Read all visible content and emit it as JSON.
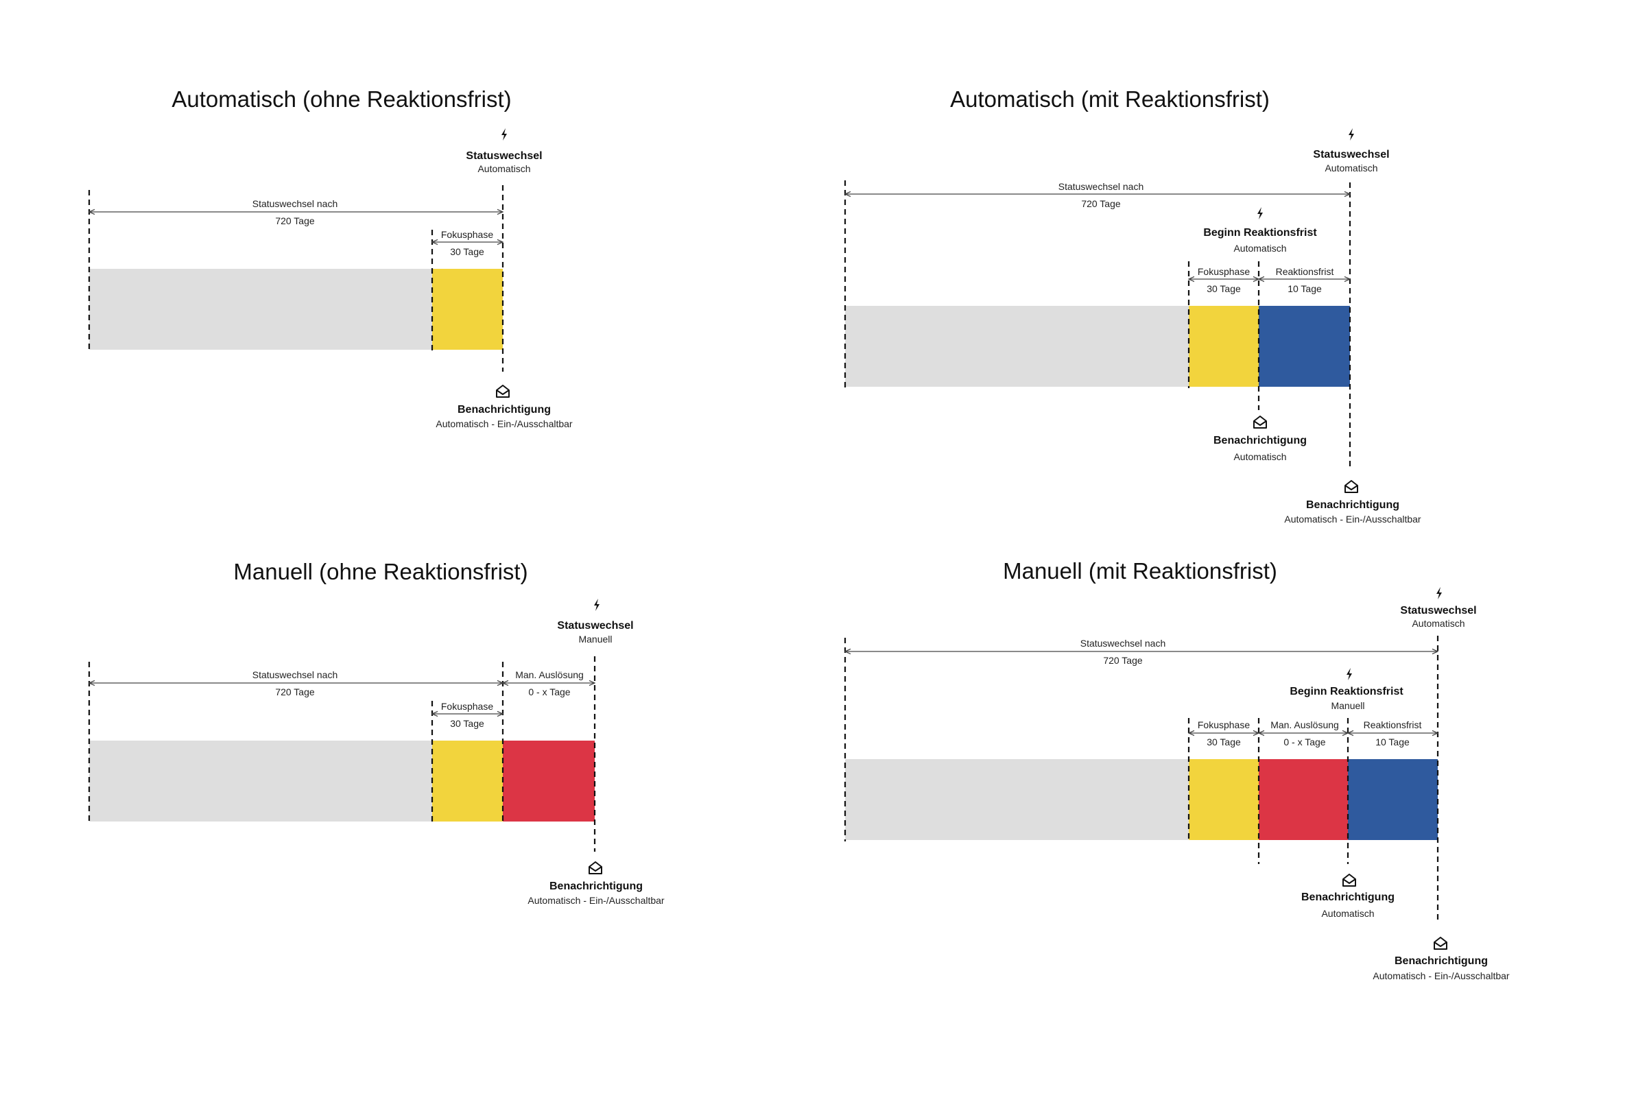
{
  "colors": {
    "base": "#dedede",
    "fokus": "#f2d43d",
    "manual": "#dc3545",
    "reaktion": "#2f5a9e",
    "line": "#111111"
  },
  "icons": {
    "event": "lightning-icon",
    "notification": "envelope-icon"
  },
  "panels": [
    {
      "title": "Automatisch (ohne Reaktionsfrist)",
      "segments": [
        {
          "id": "base",
          "color": "#dedede"
        },
        {
          "id": "fokus",
          "color": "#f2d43d"
        }
      ],
      "spans": [
        {
          "label": "Statuswechsel nach",
          "value": "720 Tage"
        },
        {
          "label": "Fokusphase",
          "value": "30 Tage"
        }
      ],
      "events": [
        {
          "title": "Statuswechsel",
          "sub": "Automatisch"
        }
      ],
      "notifications": [
        {
          "title": "Benachrichtigung",
          "sub": "Automatisch - Ein-/Ausschaltbar"
        }
      ]
    },
    {
      "title": "Automatisch (mit Reaktionsfrist)",
      "segments": [
        {
          "id": "base",
          "color": "#dedede"
        },
        {
          "id": "fokus",
          "color": "#f2d43d"
        },
        {
          "id": "reaktion",
          "color": "#2f5a9e"
        }
      ],
      "spans": [
        {
          "label": "Statuswechsel nach",
          "value": "720 Tage"
        },
        {
          "label": "Fokusphase",
          "value": "30 Tage"
        },
        {
          "label": "Reaktionsfrist",
          "value": "10 Tage"
        }
      ],
      "events": [
        {
          "title": "Statuswechsel",
          "sub": "Automatisch"
        },
        {
          "title": "Beginn Reaktionsfrist",
          "sub": "Automatisch"
        }
      ],
      "notifications": [
        {
          "title": "Benachrichtigung",
          "sub": "Automatisch"
        },
        {
          "title": "Benachrichtigung",
          "sub": "Automatisch - Ein-/Ausschaltbar"
        }
      ]
    },
    {
      "title": "Manuell  (ohne Reaktionsfrist)",
      "segments": [
        {
          "id": "base",
          "color": "#dedede"
        },
        {
          "id": "fokus",
          "color": "#f2d43d"
        },
        {
          "id": "manual",
          "color": "#dc3545"
        }
      ],
      "spans": [
        {
          "label": "Statuswechsel nach",
          "value": "720 Tage"
        },
        {
          "label": "Fokusphase",
          "value": "30 Tage"
        },
        {
          "label": "Man. Auslösung",
          "value": "0  - x Tage"
        }
      ],
      "events": [
        {
          "title": "Statuswechsel",
          "sub": "Manuell"
        }
      ],
      "notifications": [
        {
          "title": "Benachrichtigung",
          "sub": "Automatisch - Ein-/Ausschaltbar"
        }
      ]
    },
    {
      "title": "Manuell (mit Reaktionsfrist)",
      "segments": [
        {
          "id": "base",
          "color": "#dedede"
        },
        {
          "id": "fokus",
          "color": "#f2d43d"
        },
        {
          "id": "manual",
          "color": "#dc3545"
        },
        {
          "id": "reaktion",
          "color": "#2f5a9e"
        }
      ],
      "spans": [
        {
          "label": "Statuswechsel nach",
          "value": "720 Tage"
        },
        {
          "label": "Fokusphase",
          "value": "30 Tage"
        },
        {
          "label": "Man. Auslösung",
          "value": "0  - x Tage"
        },
        {
          "label": "Reaktionsfrist",
          "value": "10 Tage"
        }
      ],
      "events": [
        {
          "title": "Statuswechsel",
          "sub": "Automatisch"
        },
        {
          "title": "Beginn Reaktionsfrist",
          "sub": "Manuell"
        }
      ],
      "notifications": [
        {
          "title": "Benachrichtigung",
          "sub": "Automatisch"
        },
        {
          "title": "Benachrichtigung",
          "sub": "Automatisch - Ein-/Ausschaltbar"
        }
      ]
    }
  ]
}
